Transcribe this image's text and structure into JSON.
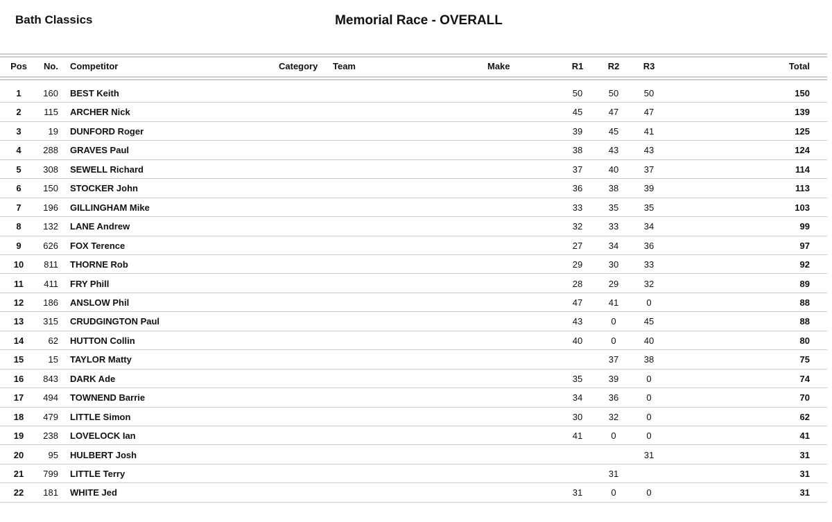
{
  "header": {
    "club": "Bath Classics",
    "title": "Memorial Race - OVERALL"
  },
  "columns": {
    "pos": "Pos",
    "no": "No.",
    "competitor": "Competitor",
    "category": "Category",
    "team": "Team",
    "make": "Make",
    "r1": "R1",
    "r2": "R2",
    "r3": "R3",
    "total": "Total"
  },
  "rows": [
    {
      "pos": "1",
      "no": "160",
      "competitor": "BEST Keith",
      "r1": "50",
      "r2": "50",
      "r3": "50",
      "total": "150"
    },
    {
      "pos": "2",
      "no": "115",
      "competitor": "ARCHER Nick",
      "r1": "45",
      "r2": "47",
      "r3": "47",
      "total": "139"
    },
    {
      "pos": "3",
      "no": "19",
      "competitor": "DUNFORD Roger",
      "r1": "39",
      "r2": "45",
      "r3": "41",
      "total": "125"
    },
    {
      "pos": "4",
      "no": "288",
      "competitor": "GRAVES Paul",
      "r1": "38",
      "r2": "43",
      "r3": "43",
      "total": "124"
    },
    {
      "pos": "5",
      "no": "308",
      "competitor": "SEWELL Richard",
      "r1": "37",
      "r2": "40",
      "r3": "37",
      "total": "114"
    },
    {
      "pos": "6",
      "no": "150",
      "competitor": "STOCKER John",
      "r1": "36",
      "r2": "38",
      "r3": "39",
      "total": "113"
    },
    {
      "pos": "7",
      "no": "196",
      "competitor": "GILLINGHAM Mike",
      "r1": "33",
      "r2": "35",
      "r3": "35",
      "total": "103"
    },
    {
      "pos": "8",
      "no": "132",
      "competitor": "LANE Andrew",
      "r1": "32",
      "r2": "33",
      "r3": "34",
      "total": "99"
    },
    {
      "pos": "9",
      "no": "626",
      "competitor": "FOX Terence",
      "r1": "27",
      "r2": "34",
      "r3": "36",
      "total": "97"
    },
    {
      "pos": "10",
      "no": "811",
      "competitor": "THORNE Rob",
      "r1": "29",
      "r2": "30",
      "r3": "33",
      "total": "92"
    },
    {
      "pos": "11",
      "no": "411",
      "competitor": "FRY Phill",
      "r1": "28",
      "r2": "29",
      "r3": "32",
      "total": "89"
    },
    {
      "pos": "12",
      "no": "186",
      "competitor": "ANSLOW Phil",
      "r1": "47",
      "r2": "41",
      "r3": "0",
      "total": "88"
    },
    {
      "pos": "13",
      "no": "315",
      "competitor": "CRUDGINGTON Paul",
      "r1": "43",
      "r2": "0",
      "r3": "45",
      "total": "88"
    },
    {
      "pos": "14",
      "no": "62",
      "competitor": "HUTTON Collin",
      "r1": "40",
      "r2": "0",
      "r3": "40",
      "total": "80"
    },
    {
      "pos": "15",
      "no": "15",
      "competitor": "TAYLOR Matty",
      "r1": "",
      "r2": "37",
      "r3": "38",
      "total": "75"
    },
    {
      "pos": "16",
      "no": "843",
      "competitor": "DARK Ade",
      "r1": "35",
      "r2": "39",
      "r3": "0",
      "total": "74"
    },
    {
      "pos": "17",
      "no": "494",
      "competitor": "TOWNEND Barrie",
      "r1": "34",
      "r2": "36",
      "r3": "0",
      "total": "70"
    },
    {
      "pos": "18",
      "no": "479",
      "competitor": "LITTLE Simon",
      "r1": "30",
      "r2": "32",
      "r3": "0",
      "total": "62"
    },
    {
      "pos": "19",
      "no": "238",
      "competitor": "LOVELOCK Ian",
      "r1": "41",
      "r2": "0",
      "r3": "0",
      "total": "41"
    },
    {
      "pos": "20",
      "no": "95",
      "competitor": "HULBERT Josh",
      "r1": "",
      "r2": "",
      "r3": "31",
      "total": "31"
    },
    {
      "pos": "21",
      "no": "799",
      "competitor": "LITTLE Terry",
      "r1": "",
      "r2": "31",
      "r3": "",
      "total": "31"
    },
    {
      "pos": "22",
      "no": "181",
      "competitor": "WHITE Jed",
      "r1": "31",
      "r2": "0",
      "r3": "0",
      "total": "31"
    }
  ]
}
